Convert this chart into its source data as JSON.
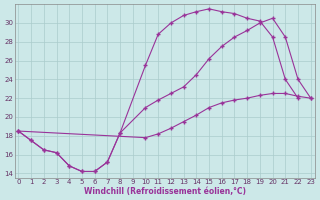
{
  "xlabel": "Windchill (Refroidissement éolien,°C)",
  "bg_color": "#cce8e8",
  "grid_color": "#aacccc",
  "line_color": "#993399",
  "xlim": [
    -0.3,
    23.3
  ],
  "ylim": [
    13.5,
    32
  ],
  "yticks": [
    14,
    16,
    18,
    20,
    22,
    24,
    26,
    28,
    30
  ],
  "xticks": [
    0,
    1,
    2,
    3,
    4,
    5,
    6,
    7,
    8,
    9,
    10,
    11,
    12,
    13,
    14,
    15,
    16,
    17,
    18,
    19,
    20,
    21,
    22,
    23
  ],
  "line1_x": [
    0,
    1,
    2,
    3,
    4,
    5,
    6,
    7,
    8,
    10,
    11,
    12,
    13,
    14,
    15,
    16,
    17,
    18,
    19,
    20,
    21,
    22
  ],
  "line1_y": [
    18.5,
    17.5,
    16.5,
    16.2,
    14.8,
    14.2,
    14.2,
    15.2,
    18.3,
    25.5,
    28.8,
    30.0,
    30.8,
    31.2,
    31.5,
    31.2,
    31.0,
    30.5,
    30.2,
    28.5,
    24.0,
    22.0
  ],
  "line2_x": [
    0,
    1,
    2,
    3,
    4,
    5,
    6,
    7,
    8,
    10,
    11,
    12,
    13,
    14,
    15,
    16,
    17,
    18,
    19,
    20,
    21,
    22,
    23
  ],
  "line2_y": [
    18.5,
    17.5,
    16.5,
    16.2,
    14.8,
    14.2,
    14.2,
    15.2,
    18.3,
    21.0,
    21.8,
    22.5,
    23.2,
    24.5,
    26.2,
    27.5,
    28.5,
    29.2,
    30.0,
    30.5,
    28.5,
    24.0,
    22.0
  ],
  "line3_x": [
    0,
    10,
    11,
    12,
    13,
    14,
    15,
    16,
    17,
    18,
    19,
    20,
    21,
    22,
    23
  ],
  "line3_y": [
    18.5,
    17.8,
    18.2,
    18.8,
    19.5,
    20.2,
    21.0,
    21.5,
    21.8,
    22.0,
    22.3,
    22.5,
    22.5,
    22.2,
    22.0
  ]
}
